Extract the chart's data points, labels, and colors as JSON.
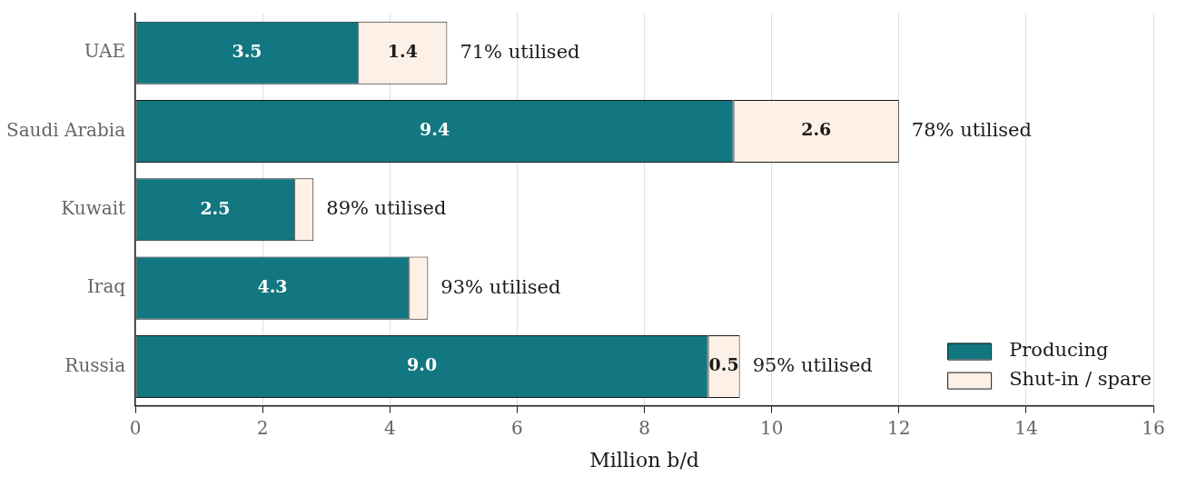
{
  "chart_data": {
    "type": "bar",
    "orientation": "horizontal",
    "stacked": true,
    "categories": [
      "UAE",
      "Saudi Arabia",
      "Kuwait",
      "Iraq",
      "Russia"
    ],
    "series": [
      {
        "name": "Producing",
        "color": "#127780",
        "values": [
          3.5,
          9.4,
          2.5,
          4.3,
          9.0
        ],
        "value_labels": [
          "3.5",
          "9.4",
          "2.5",
          "4.3",
          "9.0"
        ]
      },
      {
        "name": "Shut-in / spare",
        "color": "#fdf0e6",
        "values": [
          1.4,
          2.6,
          0.3,
          0.3,
          0.5
        ],
        "value_labels": [
          "1.4",
          "2.6",
          null,
          null,
          "0.5"
        ]
      }
    ],
    "xlabel": "Million b/d",
    "xlim": [
      0,
      16
    ],
    "xticks": [
      0,
      2,
      4,
      6,
      8,
      10,
      12,
      14,
      16
    ],
    "grid": "x",
    "legend": "bottom right",
    "annotations": [
      {
        "text": "71% utilised",
        "x": 4.9,
        "y": "UAE"
      },
      {
        "text": "78% utilised",
        "x": 12.0,
        "y": "Saudi Arabia"
      },
      {
        "text": "89% utilised",
        "x": 2.8,
        "y": "Kuwait"
      },
      {
        "text": "93% utilised",
        "x": 4.6,
        "y": "Iraq"
      },
      {
        "text": "95% utilised",
        "x": 9.5,
        "y": "Russia"
      }
    ]
  }
}
